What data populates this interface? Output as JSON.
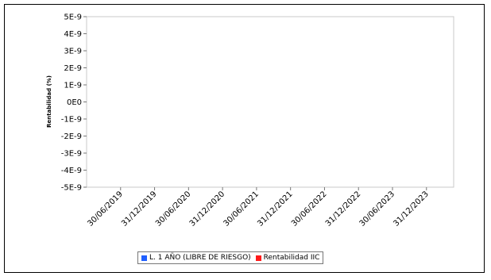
{
  "chart_data": {
    "type": "line",
    "title": "",
    "xlabel": "",
    "ylabel": "Rentabilidad (%)",
    "y_ticks": [
      "5E-9",
      "4E-9",
      "3E-9",
      "2E-9",
      "1E-9",
      "0E0",
      "-1E-9",
      "-2E-9",
      "-3E-9",
      "-4E-9",
      "-5E-9"
    ],
    "ylim": [
      -5e-09,
      5e-09
    ],
    "x_ticks": [
      "30/06/2019",
      "31/12/2019",
      "30/06/2020",
      "31/12/2020",
      "30/06/2021",
      "31/12/2021",
      "30/06/2022",
      "31/12/2022",
      "30/06/2023",
      "31/12/2023"
    ],
    "grid": false,
    "legend_position": "bottom-center",
    "series": [
      {
        "name": "L. 1 AÑO (LIBRE DE RIESGO)",
        "color": "#1f5fff",
        "values": []
      },
      {
        "name": "Rentabilidad IIC",
        "color": "#ff1a1a",
        "values": []
      }
    ]
  }
}
